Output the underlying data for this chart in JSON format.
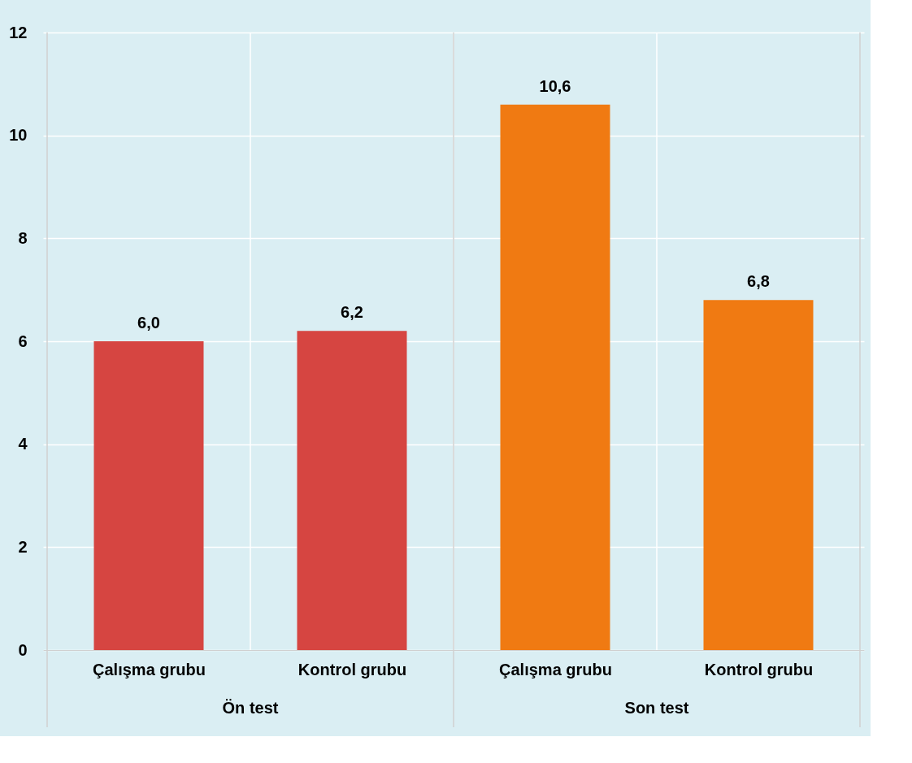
{
  "chart_data": {
    "type": "bar",
    "categories": [
      "Çalışma grubu",
      "Kontrol grubu",
      "Çalışma grubu",
      "Kontrol grubu"
    ],
    "values": [
      6.0,
      6.2,
      10.6,
      6.8
    ],
    "colors": [
      "#d64541",
      "#d64541",
      "#f07a12",
      "#f07a12"
    ],
    "value_labels": [
      "6,0",
      "6,2",
      "10,6",
      "6,8"
    ],
    "annotations": [
      "Ön test",
      "Son test"
    ],
    "ylim": [
      0,
      12
    ],
    "yticks": [
      0,
      2,
      4,
      6,
      8,
      10,
      12
    ],
    "grid": true
  }
}
